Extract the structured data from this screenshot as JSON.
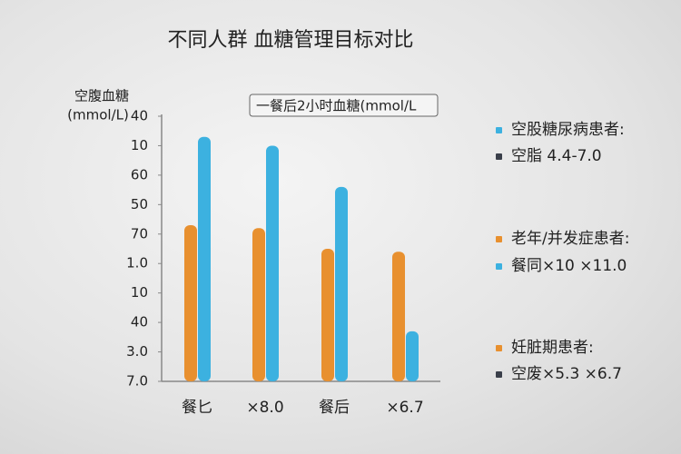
{
  "chart_data": {
    "type": "bar",
    "title": "不同人群 血糖管理目标对比",
    "ylabel": [
      "空腹血糖",
      "(mmol/L)"
    ],
    "annotation": "一餐后2小时血糖(mmol/L",
    "categories": [
      "餐匕",
      "×8.0",
      "餐后",
      "×6.7"
    ],
    "series": [
      {
        "color": "#e8902f",
        "values": [
          5.3,
          5.2,
          4.5,
          4.4
        ]
      },
      {
        "color": "#3cb1e0",
        "values": [
          8.3,
          8.0,
          6.6,
          1.7
        ]
      }
    ],
    "ylim": [
      0,
      9
    ],
    "yticks": [
      {
        "value": 0,
        "label": "7.0"
      },
      {
        "value": 1,
        "label": "3.0"
      },
      {
        "value": 2,
        "label": "40"
      },
      {
        "value": 3,
        "label": "10"
      },
      {
        "value": 4,
        "label": "1.0"
      },
      {
        "value": 5,
        "label": "70"
      },
      {
        "value": 6,
        "label": "50"
      },
      {
        "value": 7,
        "label": "60"
      },
      {
        "value": 8,
        "label": "10"
      },
      {
        "value": 9,
        "label": "40"
      }
    ],
    "legend_items": [
      {
        "text": "空股糖尿病患者:",
        "color": "#3cb1e0"
      },
      {
        "text": "空脂  4.4-7.0",
        "color": "#3a3f4a"
      },
      {
        "text": "老年/并发症患者:",
        "color": "#e8902f"
      },
      {
        "text": "餐同×10  ×11.0",
        "color": "#3cb1e0"
      },
      {
        "text": "妊脏期患者:",
        "color": "#e8902f"
      },
      {
        "text": "空废×5.3 ×6.7",
        "color": "#3a3f4a"
      }
    ]
  }
}
